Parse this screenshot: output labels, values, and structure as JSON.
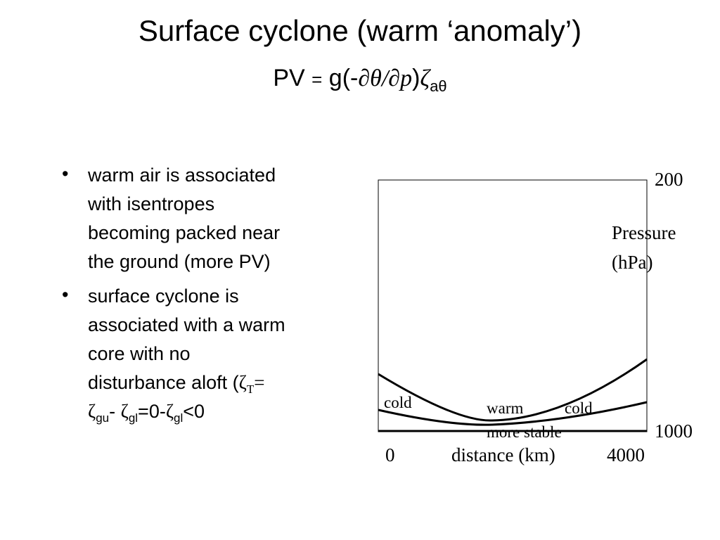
{
  "title": "Surface cyclone (warm ‘anomaly’)",
  "formula": {
    "lhs": "PV",
    "eq": "=",
    "open": "g(-",
    "ratio": "∂θ/∂p",
    "close": ")",
    "zeta": "ζ",
    "sub": "aθ"
  },
  "bullets": [
    {
      "lines": [
        "warm air is associated",
        "with isentropes",
        "becoming packed near",
        "the ground (more PV)"
      ]
    },
    {
      "lines": [
        "surface cyclone is",
        "associated with a warm",
        "core with no",
        "disturbance aloft ("
      ],
      "expr": [
        "ζ",
        "T",
        "=",
        "ζ",
        "gu",
        "-",
        "ζ",
        "gl",
        "=0-",
        "ζ",
        "gl",
        "<0"
      ]
    }
  ],
  "diagram": {
    "top_pressure": "200",
    "bottom_pressure": "1000",
    "axis_label": [
      "Pressure",
      "(hPa)"
    ],
    "x_start": "0",
    "x_label": "distance (km)",
    "x_end": "4000",
    "regions": [
      "cold",
      "warm",
      "cold"
    ],
    "stability": "more stable"
  }
}
